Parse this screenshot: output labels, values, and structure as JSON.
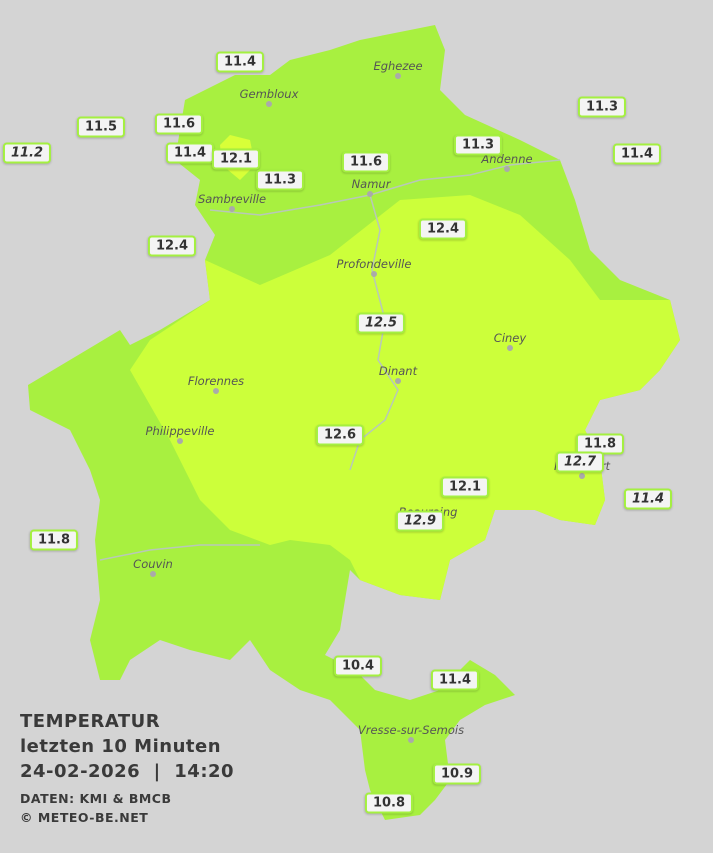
{
  "legend": {
    "title": "TEMPERATUR",
    "subtitle": "letzten 10 Minuten",
    "datetime": "24-02-2026  |  14:20",
    "source": "DATEN: KMI & BMCB",
    "copyright": "© METEO-BE.NET"
  },
  "cities": [
    "Eghezee",
    "Gembloux",
    "Andenne",
    "Namur",
    "Sambreville",
    "Profondeville",
    "Ciney",
    "Dinant",
    "Florennes",
    "Philippeville",
    "Rochefort",
    "Beauraing",
    "Couvin",
    "Vresse-sur-Semois"
  ],
  "stations": [
    11.4,
    11.5,
    11.6,
    11.2,
    11.4,
    12.1,
    11.3,
    11.6,
    11.3,
    11.3,
    11.4,
    12.4,
    12.4,
    12.5,
    12.6,
    11.8,
    12.7,
    12.1,
    11.4,
    12.9,
    11.8,
    10.4,
    11.4,
    10.9,
    10.8
  ]
}
